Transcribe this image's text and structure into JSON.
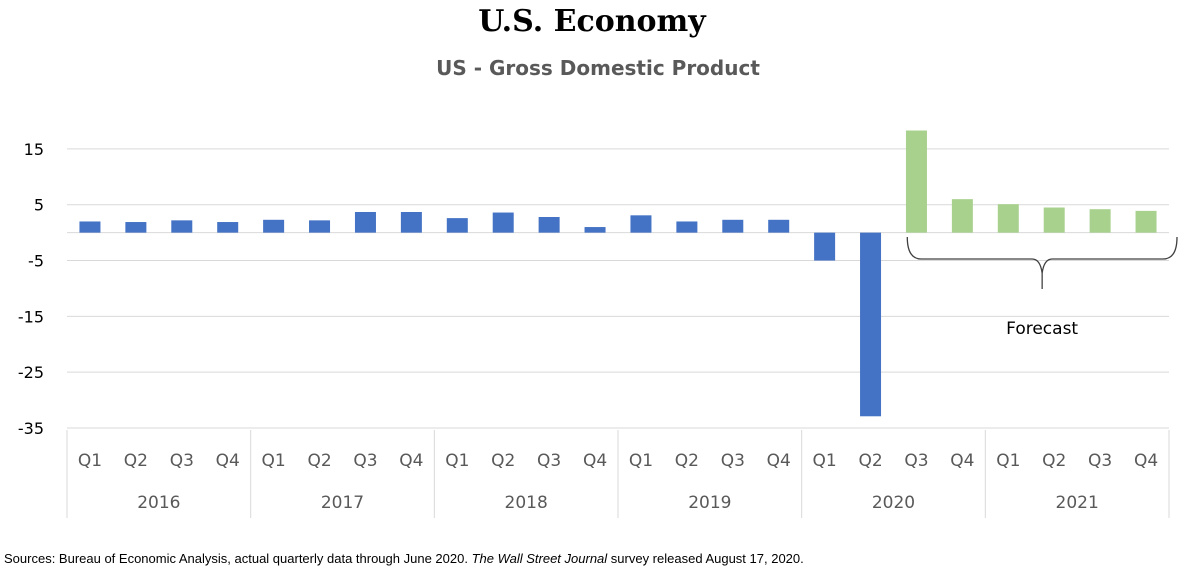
{
  "title": "U.S. Economy",
  "chart_data": {
    "type": "bar",
    "title": "US - Gross Domestic Product",
    "xlabel": "",
    "ylabel": "",
    "ylim": [
      -35,
      20
    ],
    "yticks": [
      15,
      5,
      -5,
      -15,
      -25,
      -35
    ],
    "grid": true,
    "legend": "none",
    "categories": [
      {
        "quarter": "Q1",
        "year": "2016"
      },
      {
        "quarter": "Q2",
        "year": "2016"
      },
      {
        "quarter": "Q3",
        "year": "2016"
      },
      {
        "quarter": "Q4",
        "year": "2016"
      },
      {
        "quarter": "Q1",
        "year": "2017"
      },
      {
        "quarter": "Q2",
        "year": "2017"
      },
      {
        "quarter": "Q3",
        "year": "2017"
      },
      {
        "quarter": "Q4",
        "year": "2017"
      },
      {
        "quarter": "Q1",
        "year": "2018"
      },
      {
        "quarter": "Q2",
        "year": "2018"
      },
      {
        "quarter": "Q3",
        "year": "2018"
      },
      {
        "quarter": "Q4",
        "year": "2018"
      },
      {
        "quarter": "Q1",
        "year": "2019"
      },
      {
        "quarter": "Q2",
        "year": "2019"
      },
      {
        "quarter": "Q3",
        "year": "2019"
      },
      {
        "quarter": "Q4",
        "year": "2019"
      },
      {
        "quarter": "Q1",
        "year": "2020"
      },
      {
        "quarter": "Q2",
        "year": "2020"
      },
      {
        "quarter": "Q3",
        "year": "2020"
      },
      {
        "quarter": "Q4",
        "year": "2020"
      },
      {
        "quarter": "Q1",
        "year": "2021"
      },
      {
        "quarter": "Q2",
        "year": "2021"
      },
      {
        "quarter": "Q3",
        "year": "2021"
      },
      {
        "quarter": "Q4",
        "year": "2021"
      }
    ],
    "years": [
      "2016",
      "2017",
      "2018",
      "2019",
      "2020",
      "2021"
    ],
    "values": [
      2.0,
      1.9,
      2.2,
      1.9,
      2.3,
      2.2,
      3.7,
      3.7,
      2.6,
      3.6,
      2.8,
      1.0,
      3.1,
      2.0,
      2.3,
      2.3,
      -5.0,
      -32.9,
      18.3,
      6.0,
      5.1,
      4.5,
      4.2,
      3.9
    ],
    "colors": [
      "#4472c4",
      "#4472c4",
      "#4472c4",
      "#4472c4",
      "#4472c4",
      "#4472c4",
      "#4472c4",
      "#4472c4",
      "#4472c4",
      "#4472c4",
      "#4472c4",
      "#4472c4",
      "#4472c4",
      "#4472c4",
      "#4472c4",
      "#4472c4",
      "#4472c4",
      "#4472c4",
      "#a9d18e",
      "#a9d18e",
      "#a9d18e",
      "#a9d18e",
      "#a9d18e",
      "#a9d18e"
    ],
    "actual_color": "#4472c4",
    "forecast_color": "#a9d18e",
    "annotation": "Forecast"
  },
  "footnote": {
    "part1": "Sources: Bureau of Economic Analysis, actual quarterly data through June 2020. ",
    "italic": "The Wall Street Journal",
    "part2": " survey released August 17, 2020."
  }
}
